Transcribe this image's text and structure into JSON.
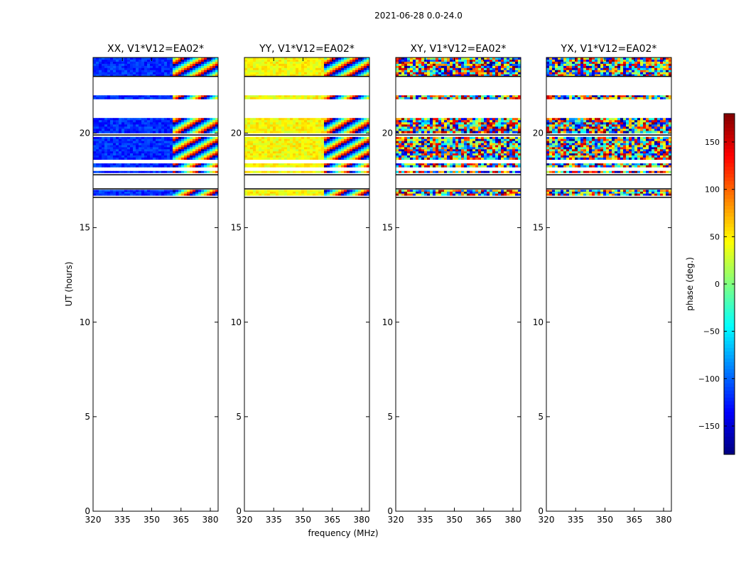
{
  "figure": {
    "suptitle": "2021-06-28 0.0-24.0",
    "xlabel": "frequency (MHz)",
    "ylabel": "UT (hours)"
  },
  "colorbar": {
    "label": "phase (deg.)",
    "range": [
      -180,
      180
    ],
    "ticks": [
      -150,
      -100,
      -50,
      0,
      50,
      100,
      150
    ],
    "colormap": "jet"
  },
  "chart_data": {
    "type": "heatmap",
    "x_range_mhz": [
      320,
      384
    ],
    "x_ticks": [
      320,
      335,
      350,
      365,
      380
    ],
    "y_range_hours": [
      0,
      24
    ],
    "y_ticks": [
      0,
      5,
      10,
      15,
      20
    ],
    "data_bands_hours": [
      [
        23.0,
        24.0
      ],
      [
        21.8,
        22.0
      ],
      [
        20.0,
        20.8
      ],
      [
        18.6,
        19.8
      ],
      [
        18.2,
        18.4
      ],
      [
        17.9,
        18.0
      ],
      [
        16.7,
        17.0
      ]
    ],
    "panels": [
      {
        "title": "XX, V1*V12=EA02*",
        "low_band_phase": -120,
        "high_band_pattern": "fringes"
      },
      {
        "title": "YY, V1*V12=EA02*",
        "low_band_phase": 45,
        "high_band_pattern": "fringes"
      },
      {
        "title": "XY, V1*V12=EA02*",
        "low_band_phase": null,
        "high_band_pattern": "noise"
      },
      {
        "title": "YX, V1*V12=EA02*",
        "low_band_phase": null,
        "high_band_pattern": "noise"
      }
    ]
  }
}
